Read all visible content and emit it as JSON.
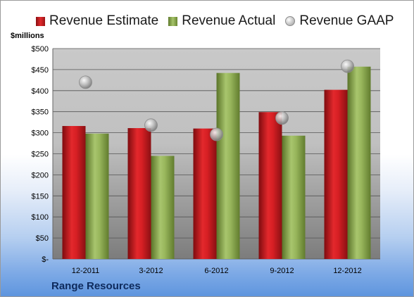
{
  "chart_data": {
    "type": "bar",
    "title": "",
    "company": "Range Resources",
    "ylabel": "$millions",
    "xlabel": "",
    "ylim": [
      0,
      500
    ],
    "yticks": [
      0,
      50,
      100,
      150,
      200,
      250,
      300,
      350,
      400,
      450,
      500
    ],
    "ytick_labels": [
      "$-",
      "$50",
      "$100",
      "$150",
      "$200",
      "$250",
      "$300",
      "$350",
      "$400",
      "$450",
      "$500"
    ],
    "categories": [
      "12-2011",
      "3-2012",
      "6-2012",
      "9-2012",
      "12-2012"
    ],
    "series": [
      {
        "name": "Revenue Estimate",
        "kind": "bar",
        "color": "#c8161c",
        "values": [
          316,
          311,
          310,
          349,
          402
        ]
      },
      {
        "name": "Revenue Actual",
        "kind": "bar",
        "color": "#8fae4f",
        "values": [
          298,
          245,
          442,
          293,
          457
        ]
      },
      {
        "name": "Revenue GAAP",
        "kind": "marker",
        "color": "#b8b8b8",
        "values": [
          420,
          318,
          296,
          335,
          458
        ]
      }
    ],
    "grid": true,
    "legend_position": "top"
  }
}
